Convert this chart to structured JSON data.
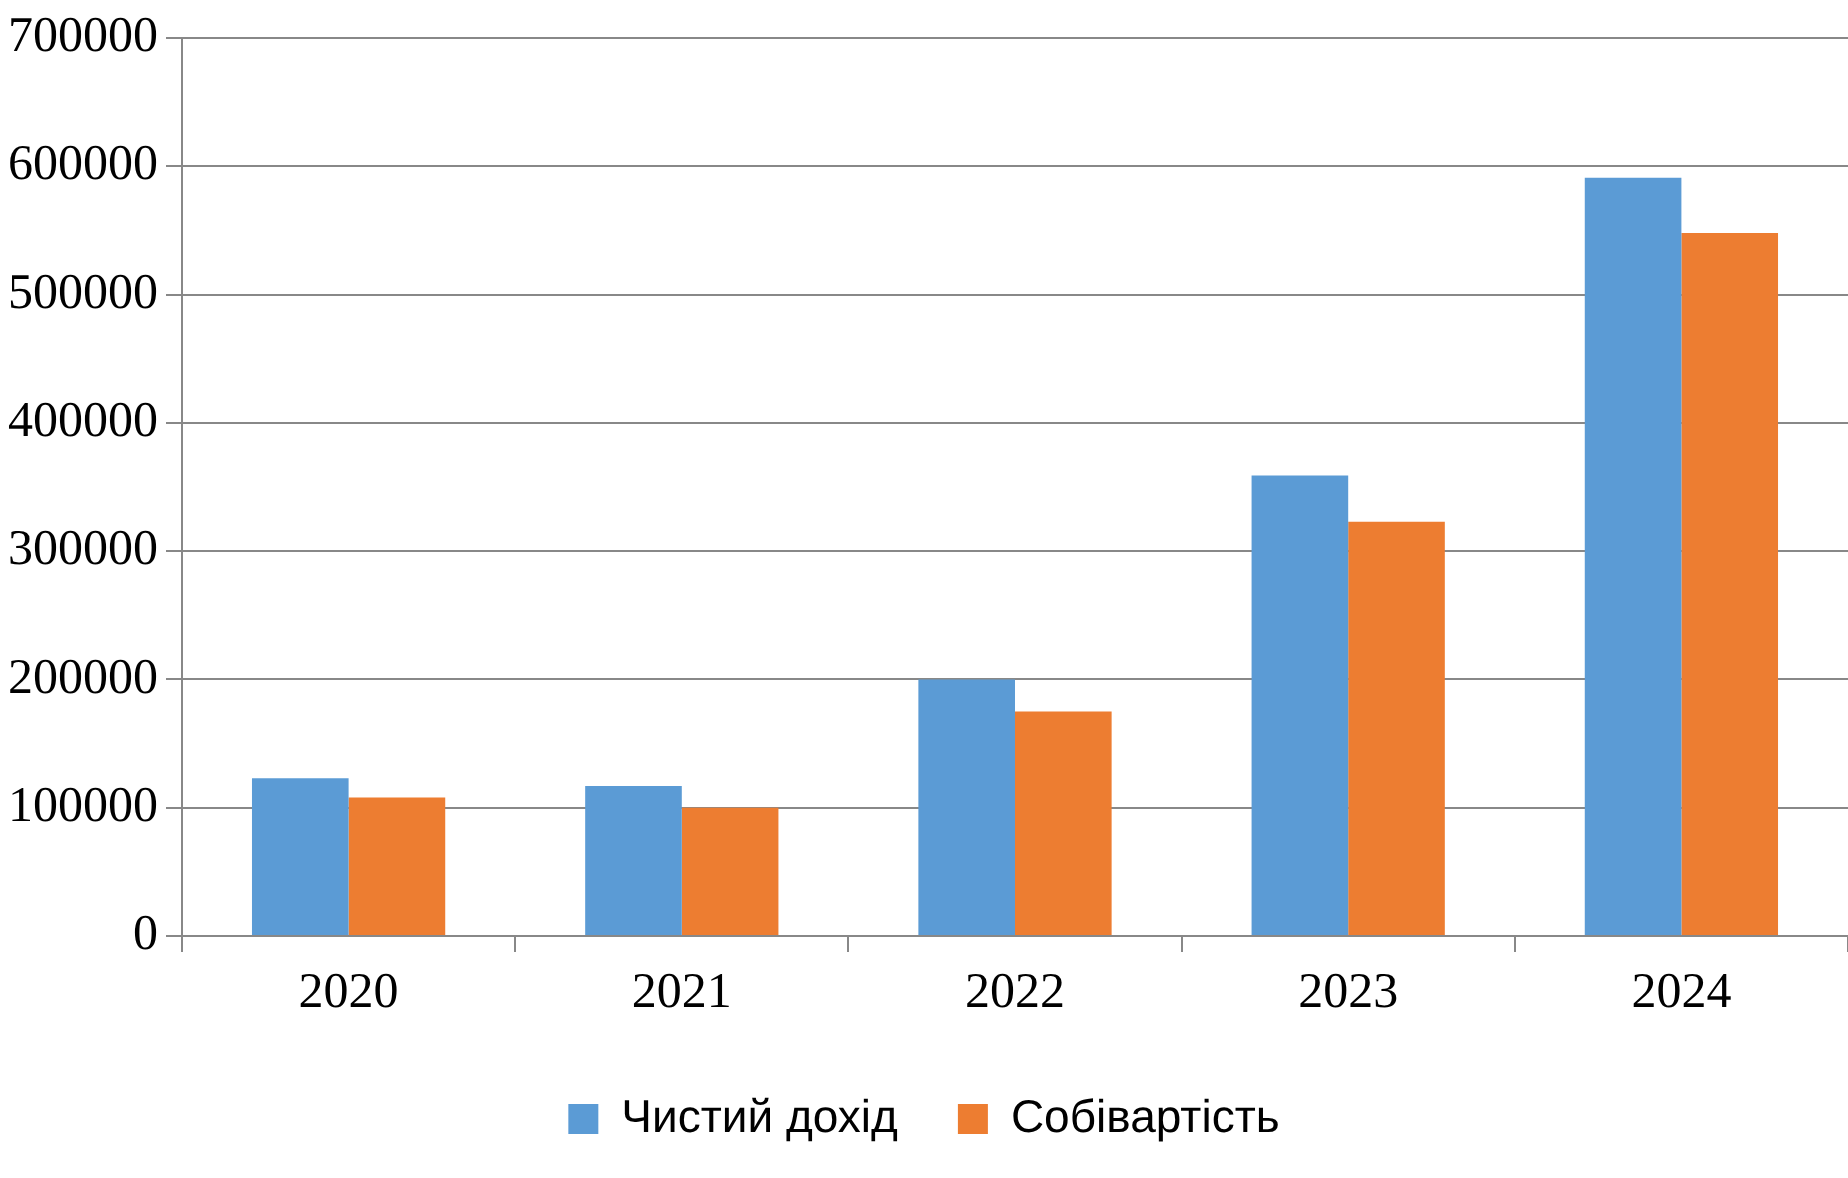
{
  "chart_data": {
    "type": "bar",
    "categories": [
      "2020",
      "2021",
      "2022",
      "2023",
      "2024"
    ],
    "series": [
      {
        "name": "Чистий дохід",
        "color": "#5b9bd5",
        "values": [
          123000,
          117000,
          200000,
          359000,
          591000
        ]
      },
      {
        "name": "Собівартість",
        "color": "#ed7d31",
        "values": [
          108000,
          100000,
          175000,
          323000,
          548000
        ]
      }
    ],
    "ylim": [
      0,
      700000
    ],
    "yticks": [
      0,
      100000,
      200000,
      300000,
      400000,
      500000,
      600000,
      700000
    ],
    "grid": "y",
    "legend": "bottom"
  }
}
